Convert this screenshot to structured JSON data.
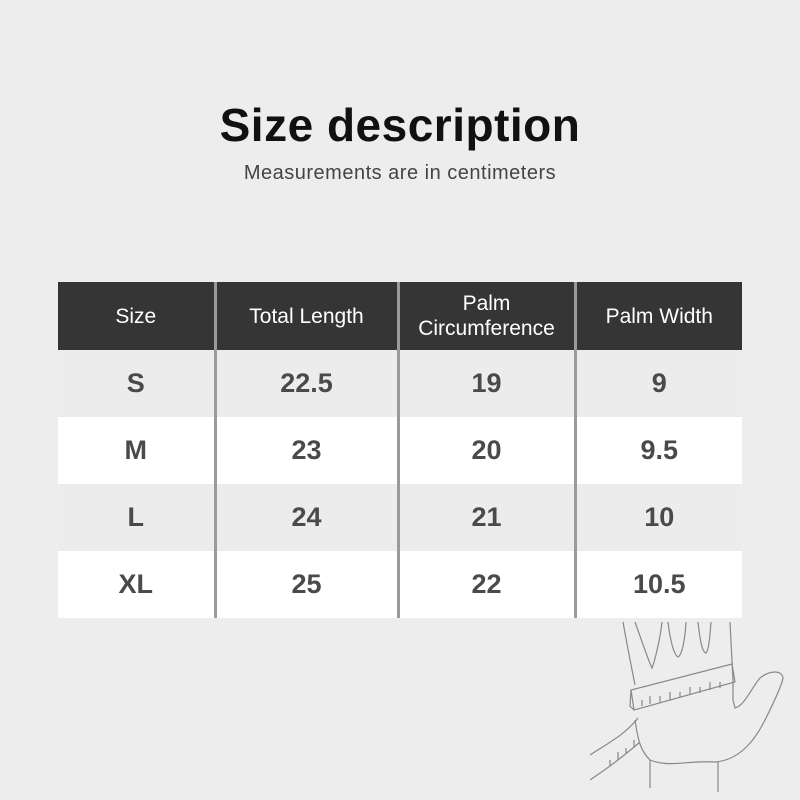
{
  "header": {
    "title": "Size description",
    "subtitle": "Measurements are in centimeters"
  },
  "table": {
    "columns": [
      "Size",
      "Total Length",
      "Palm\nCircumference",
      "Palm Width"
    ],
    "column_lines": [
      [
        "Size"
      ],
      [
        "Total Length"
      ],
      [
        "Palm",
        "Circumference"
      ],
      [
        "Palm Width"
      ]
    ],
    "rows": [
      [
        "S",
        "22.5",
        "19",
        "9"
      ],
      [
        "M",
        "23",
        "20",
        "9.5"
      ],
      [
        "L",
        "24",
        "21",
        "10"
      ],
      [
        "XL",
        "25",
        "22",
        "10.5"
      ]
    ]
  },
  "colors": {
    "header_bg": "#353535",
    "header_text": "#ffffff",
    "row_alt": "#ececec",
    "row": "#ffffff",
    "background": "#ededed"
  },
  "illustration": "hand-measuring-icon"
}
